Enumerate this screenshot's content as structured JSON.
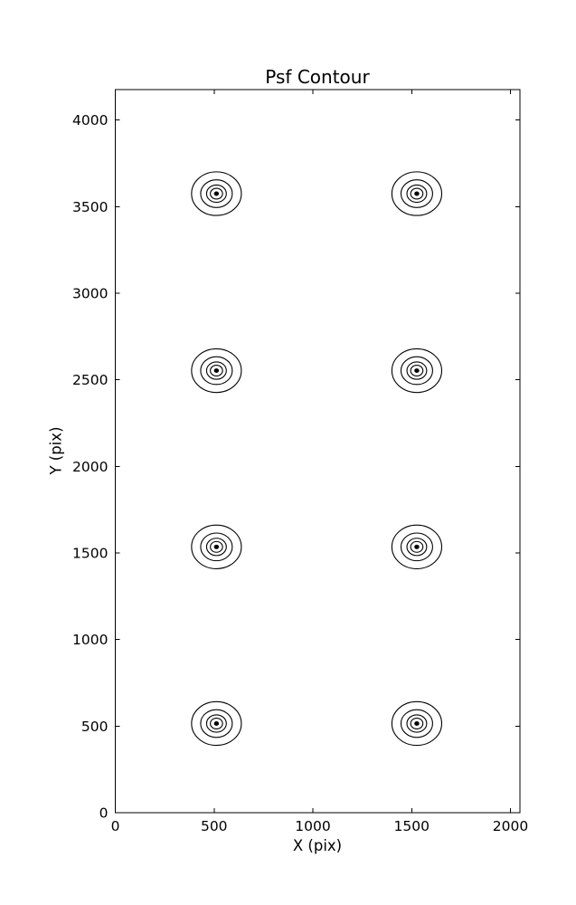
{
  "chart_data": {
    "type": "contour",
    "title": "Psf Contour",
    "xlabel": "X (pix)",
    "ylabel": "Y (pix)",
    "xlim": [
      0,
      2048
    ],
    "ylim": [
      0,
      4176
    ],
    "x_ticks": [
      0,
      500,
      1000,
      1500,
      2000
    ],
    "y_ticks": [
      0,
      500,
      1000,
      1500,
      2000,
      2500,
      3000,
      3500,
      4000
    ],
    "grid": false,
    "legend": null,
    "tick_direction": "in",
    "ticks_all_sides": true,
    "line_color": "#000000",
    "background_color": "#ffffff",
    "psf_positions": [
      {
        "x": 512,
        "y": 3575
      },
      {
        "x": 1526,
        "y": 3575
      },
      {
        "x": 512,
        "y": 2553
      },
      {
        "x": 1526,
        "y": 2553
      },
      {
        "x": 512,
        "y": 1535
      },
      {
        "x": 1526,
        "y": 1535
      },
      {
        "x": 512,
        "y": 515
      },
      {
        "x": 1526,
        "y": 515
      }
    ],
    "contour_ring_radii_pix": [
      126,
      80,
      50,
      31,
      10
    ],
    "innermost_ring_filled": true
  }
}
